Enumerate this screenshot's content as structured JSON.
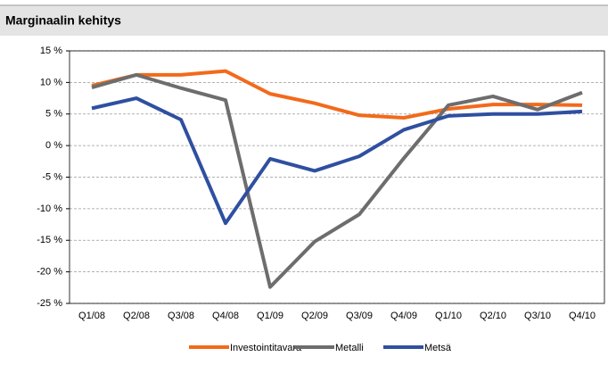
{
  "chart_data": {
    "type": "line",
    "title": "Marginaalin kehitys",
    "categories": [
      "Q1/08",
      "Q2/08",
      "Q3/08",
      "Q4/08",
      "Q1/09",
      "Q2/09",
      "Q3/09",
      "Q4/09",
      "Q1/10",
      "Q2/10",
      "Q3/10",
      "Q4/10"
    ],
    "series": [
      {
        "name": "Investointitavara",
        "color": "#f26a1b",
        "values": [
          9.5,
          11.2,
          11.2,
          11.8,
          8.2,
          6.7,
          4.8,
          4.4,
          5.8,
          6.5,
          6.5,
          6.4
        ]
      },
      {
        "name": "Metalli",
        "color": "#6d6d6d",
        "values": [
          9.2,
          11.2,
          9.1,
          7.2,
          -22.4,
          -15.2,
          -10.9,
          -2,
          6.4,
          7.8,
          5.7,
          8.4
        ]
      },
      {
        "name": "Metsä",
        "color": "#2f4fa0",
        "values": [
          5.9,
          7.5,
          4.1,
          -12.3,
          -2.1,
          -4,
          -1.7,
          2.5,
          4.7,
          5,
          5,
          5.4
        ]
      }
    ],
    "ylim": [
      -25,
      15
    ],
    "yticks": [
      {
        "value": -25,
        "label": "-25 %"
      },
      {
        "value": -20,
        "label": "-20 %"
      },
      {
        "value": -15,
        "label": "-15 %"
      },
      {
        "value": -10,
        "label": "-10 %"
      },
      {
        "value": -5,
        "label": "-5 %"
      },
      {
        "value": 0,
        "label": "0 %"
      },
      {
        "value": 5,
        "label": "5 %"
      },
      {
        "value": 10,
        "label": "10 %"
      },
      {
        "value": 15,
        "label": "15 %"
      }
    ],
    "grid": true,
    "legend": "bottom"
  }
}
